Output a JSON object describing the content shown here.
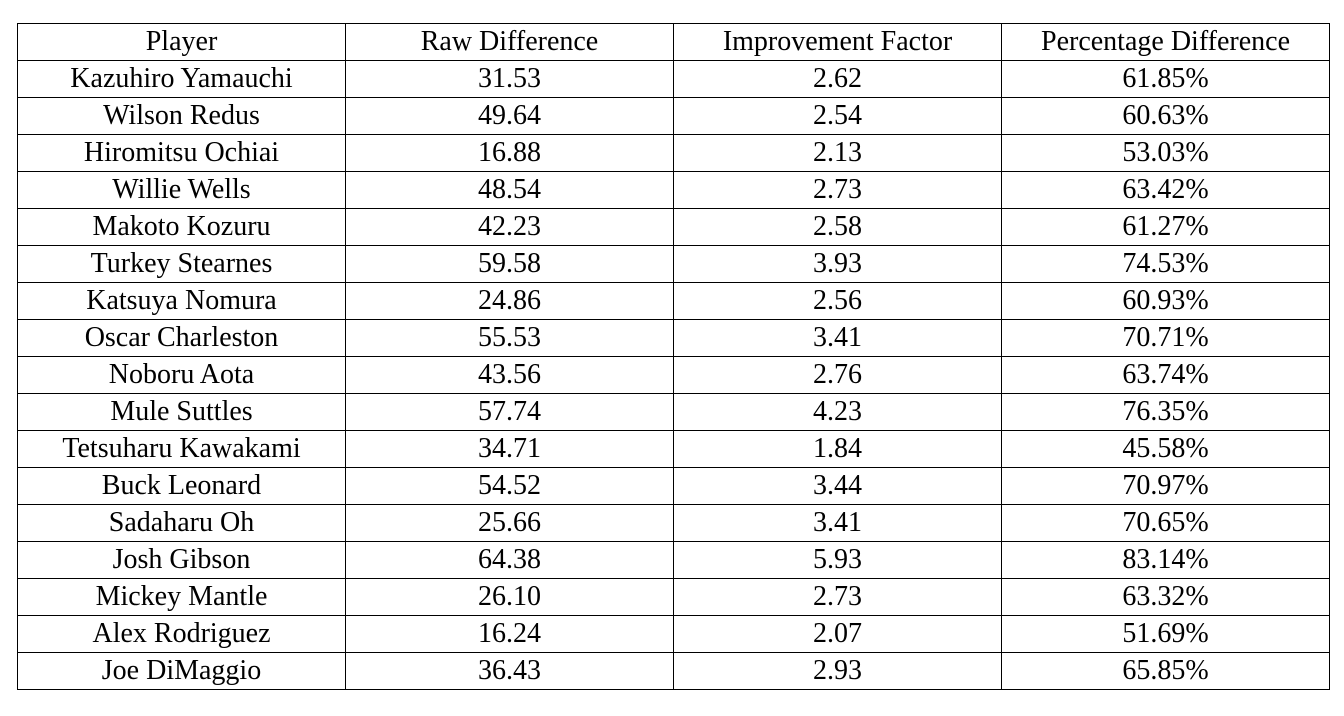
{
  "table": {
    "headers": [
      "Player",
      "Raw Difference",
      "Improvement Factor",
      "Percentage Difference"
    ],
    "rows": [
      [
        "Kazuhiro Yamauchi",
        "31.53",
        "2.62",
        "61.85%"
      ],
      [
        "Wilson Redus",
        "49.64",
        "2.54",
        "60.63%"
      ],
      [
        "Hiromitsu Ochiai",
        "16.88",
        "2.13",
        "53.03%"
      ],
      [
        "Willie Wells",
        "48.54",
        "2.73",
        "63.42%"
      ],
      [
        "Makoto Kozuru",
        "42.23",
        "2.58",
        "61.27%"
      ],
      [
        "Turkey Stearnes",
        "59.58",
        "3.93",
        "74.53%"
      ],
      [
        "Katsuya Nomura",
        "24.86",
        "2.56",
        "60.93%"
      ],
      [
        "Oscar Charleston",
        "55.53",
        "3.41",
        "70.71%"
      ],
      [
        "Noboru Aota",
        "43.56",
        "2.76",
        "63.74%"
      ],
      [
        "Mule Suttles",
        "57.74",
        "4.23",
        "76.35%"
      ],
      [
        "Tetsuharu Kawakami",
        "34.71",
        "1.84",
        "45.58%"
      ],
      [
        "Buck Leonard",
        "54.52",
        "3.44",
        "70.97%"
      ],
      [
        "Sadaharu Oh",
        "25.66",
        "3.41",
        "70.65%"
      ],
      [
        "Josh Gibson",
        "64.38",
        "5.93",
        "83.14%"
      ],
      [
        "Mickey Mantle",
        "26.10",
        "2.73",
        "63.32%"
      ],
      [
        "Alex Rodriguez",
        "16.24",
        "2.07",
        "51.69%"
      ],
      [
        "Joe DiMaggio",
        "36.43",
        "2.93",
        "65.85%"
      ]
    ]
  }
}
